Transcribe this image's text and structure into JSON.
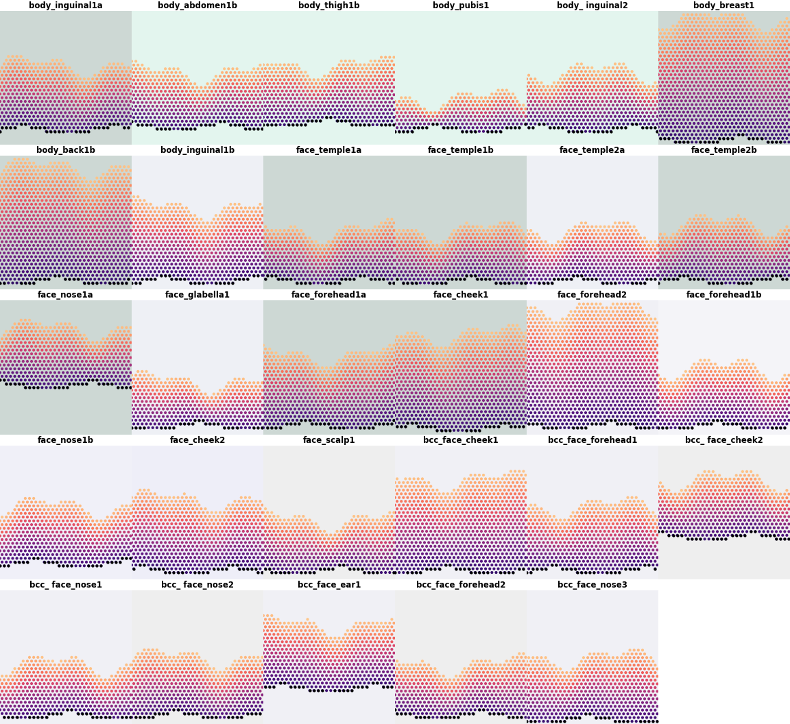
{
  "chart_data": {
    "type": "spatial",
    "color": "magma",
    "tick_labels": false,
    "panels": [
      {
        "title": "body_inguinal1a"
      },
      {
        "title": "body_abdomen1b"
      },
      {
        "title": "body_thigh1b"
      },
      {
        "title": "body_pubis1"
      },
      {
        "title": "body_ inguinal2"
      },
      {
        "title": "body_breast1"
      },
      {
        "title": "body_back1b"
      },
      {
        "title": "body_inguinal1b"
      },
      {
        "title": "face_temple1a"
      },
      {
        "title": "face_temple1b"
      },
      {
        "title": "face_temple2a"
      },
      {
        "title": "face_temple2b"
      },
      {
        "title": "face_nose1a"
      },
      {
        "title": "face_glabella1"
      },
      {
        "title": "face_forehead1a"
      },
      {
        "title": "face_cheek1"
      },
      {
        "title": "face_forehead2"
      },
      {
        "title": "face_forehead1b"
      },
      {
        "title": "face_nose1b"
      },
      {
        "title": "face_cheek2"
      },
      {
        "title": "face_scalp1"
      },
      {
        "title": "bcc_face_cheek1"
      },
      {
        "title": "bcc_face_forehead1"
      },
      {
        "title": "bcc_ face_cheek2"
      },
      {
        "title": "bcc_ face_nose1"
      },
      {
        "title": "bcc_ face_nose2"
      },
      {
        "title": "bcc_face_ear1"
      },
      {
        "title": "bcc_face_forehead2"
      },
      {
        "title": "bcc_face_nose3"
      }
    ]
  }
}
